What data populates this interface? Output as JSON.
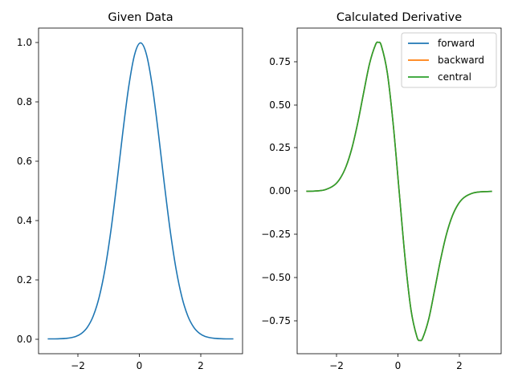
{
  "chart_data": [
    {
      "type": "line",
      "title": "Given Data",
      "xlabel": "",
      "ylabel": "",
      "xlim": [
        -3.45,
        3.45
      ],
      "ylim": [
        -0.05,
        1.05
      ],
      "xticks": [
        -2,
        0,
        2
      ],
      "xtick_labels": [
        "−2",
        "0",
        "2"
      ],
      "yticks": [
        0.0,
        0.2,
        0.4,
        0.6,
        0.8,
        1.0
      ],
      "ytick_labels": [
        "0.0",
        "0.2",
        "0.4",
        "0.6",
        "0.8",
        "1.0"
      ],
      "grid": false,
      "series": [
        {
          "color": "#1f77b4",
          "x": [
            -3.14,
            -2.8,
            -2.5,
            -2.2,
            -2.0,
            -1.8,
            -1.6,
            -1.4,
            -1.2,
            -1.0,
            -0.8,
            -0.6,
            -0.4,
            -0.2,
            0.0,
            0.2,
            0.4,
            0.6,
            0.8,
            1.0,
            1.2,
            1.4,
            1.6,
            1.8,
            2.0,
            2.2,
            2.5,
            2.8,
            3.14
          ],
          "y": [
            0.0001,
            0.0004,
            0.0019,
            0.0079,
            0.0183,
            0.0392,
            0.0773,
            0.1409,
            0.2369,
            0.3679,
            0.5273,
            0.6977,
            0.8521,
            0.9608,
            1.0,
            0.9608,
            0.8521,
            0.6977,
            0.5273,
            0.3679,
            0.2369,
            0.1409,
            0.0773,
            0.0392,
            0.0183,
            0.0079,
            0.0019,
            0.0004,
            0.0001
          ]
        }
      ]
    },
    {
      "type": "line",
      "title": "Calculated Derivative",
      "xlabel": "",
      "ylabel": "",
      "xlim": [
        -3.45,
        3.45
      ],
      "ylim": [
        -0.935,
        0.94
      ],
      "xticks": [
        -2,
        0,
        2
      ],
      "xtick_labels": [
        "−2",
        "0",
        "2"
      ],
      "yticks": [
        -0.75,
        -0.5,
        -0.25,
        0.0,
        0.25,
        0.5,
        0.75
      ],
      "ytick_labels": [
        "−0.75",
        "−0.50",
        "−0.25",
        "0.00",
        "0.25",
        "0.50",
        "0.75"
      ],
      "grid": false,
      "legend": "top-right",
      "series": [
        {
          "name": "forward",
          "color": "#1f77b4",
          "x": [
            -3.14,
            -2.8,
            -2.5,
            -2.2,
            -2.0,
            -1.8,
            -1.6,
            -1.4,
            -1.2,
            -1.0,
            -0.8,
            -0.7071,
            -0.6,
            -0.4,
            -0.2,
            0.0,
            0.2,
            0.4,
            0.6,
            0.7071,
            0.8,
            1.0,
            1.2,
            1.4,
            1.6,
            1.8,
            2.0,
            2.2,
            2.5,
            2.8,
            3.14
          ],
          "y": [
            0.0003,
            0.0022,
            0.0096,
            0.0348,
            0.0733,
            0.1411,
            0.2473,
            0.3945,
            0.5686,
            0.7358,
            0.8437,
            0.8578,
            0.8372,
            0.6817,
            0.3843,
            0.0,
            -0.3843,
            -0.6817,
            -0.8372,
            -0.8578,
            -0.8437,
            -0.7358,
            -0.5686,
            -0.3945,
            -0.2473,
            -0.1411,
            -0.0733,
            -0.0348,
            -0.0096,
            -0.0022,
            -0.0003
          ]
        },
        {
          "name": "backward",
          "color": "#ff7f0e",
          "x": [
            -3.14,
            -2.8,
            -2.5,
            -2.2,
            -2.0,
            -1.8,
            -1.6,
            -1.4,
            -1.2,
            -1.0,
            -0.8,
            -0.7071,
            -0.6,
            -0.4,
            -0.2,
            0.0,
            0.2,
            0.4,
            0.6,
            0.7071,
            0.8,
            1.0,
            1.2,
            1.4,
            1.6,
            1.8,
            2.0,
            2.2,
            2.5,
            2.8,
            3.14
          ],
          "y": [
            0.0003,
            0.0022,
            0.0096,
            0.0348,
            0.0733,
            0.1411,
            0.2473,
            0.3945,
            0.5686,
            0.7358,
            0.8437,
            0.8578,
            0.8372,
            0.6817,
            0.3843,
            0.0,
            -0.3843,
            -0.6817,
            -0.8372,
            -0.8578,
            -0.8437,
            -0.7358,
            -0.5686,
            -0.3945,
            -0.2473,
            -0.1411,
            -0.0733,
            -0.0348,
            -0.0096,
            -0.0022,
            -0.0003
          ]
        },
        {
          "name": "central",
          "color": "#2ca02c",
          "x": [
            -3.14,
            -2.8,
            -2.5,
            -2.2,
            -2.0,
            -1.8,
            -1.6,
            -1.4,
            -1.2,
            -1.0,
            -0.8,
            -0.7071,
            -0.6,
            -0.4,
            -0.2,
            0.0,
            0.2,
            0.4,
            0.6,
            0.7071,
            0.8,
            1.0,
            1.2,
            1.4,
            1.6,
            1.8,
            2.0,
            2.2,
            2.5,
            2.8,
            3.14
          ],
          "y": [
            0.0003,
            0.0022,
            0.0096,
            0.0348,
            0.0733,
            0.1411,
            0.2473,
            0.3945,
            0.5686,
            0.7358,
            0.8437,
            0.8578,
            0.8372,
            0.6817,
            0.3843,
            0.0,
            -0.3843,
            -0.6817,
            -0.8372,
            -0.8578,
            -0.8437,
            -0.7358,
            -0.5686,
            -0.3945,
            -0.2473,
            -0.1411,
            -0.0733,
            -0.0348,
            -0.0096,
            -0.0022,
            -0.0003
          ]
        }
      ]
    }
  ]
}
